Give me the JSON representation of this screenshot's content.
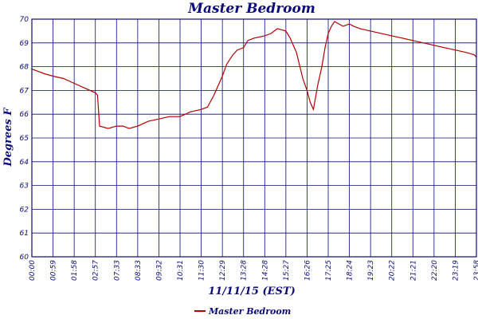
{
  "chart_data": {
    "type": "line",
    "title": "Master Bedroom",
    "xlabel": "11/11/15 (EST)",
    "ylabel": "Degrees F",
    "ylim": [
      60,
      70
    ],
    "y_ticks": [
      "60",
      "61",
      "62",
      "63",
      "64",
      "65",
      "66",
      "67",
      "68",
      "69",
      "70"
    ],
    "x_ticks": [
      "00:00",
      "00:59",
      "01:58",
      "02:57",
      "07:33",
      "08:33",
      "09:32",
      "10:31",
      "11:30",
      "12:29",
      "13:28",
      "14:28",
      "15:27",
      "16:26",
      "17:25",
      "18:24",
      "19:23",
      "20:22",
      "21:21",
      "22:20",
      "23:19",
      "23:58"
    ],
    "grid": true,
    "legend_position": "bottom-center",
    "colors": {
      "series": "#b00000",
      "grid": "#0b0b7a",
      "text": "#0b0b7a"
    },
    "series": [
      {
        "name": "Master Bedroom",
        "x_index": [
          0,
          0.3,
          0.6,
          1,
          1.5,
          2,
          2.5,
          3,
          3.1,
          3.2,
          3.6,
          4,
          4.3,
          4.6,
          5,
          5.5,
          6,
          6.5,
          7,
          7.5,
          8,
          8.3,
          8.6,
          9,
          9.2,
          9.5,
          9.7,
          10,
          10.2,
          10.5,
          11,
          11.3,
          11.6,
          12,
          12.2,
          12.5,
          12.8,
          13,
          13.15,
          13.3,
          13.5,
          13.7,
          13.85,
          14,
          14.15,
          14.3,
          14.5,
          14.7,
          15,
          15.2,
          15.5,
          16,
          16.5,
          17,
          17.5,
          18,
          18.5,
          19,
          19.5,
          20,
          20.5,
          20.9,
          21
        ],
        "values": [
          67.9,
          67.8,
          67.7,
          67.6,
          67.5,
          67.3,
          67.1,
          66.9,
          66.8,
          65.5,
          65.4,
          65.5,
          65.5,
          65.4,
          65.5,
          65.7,
          65.8,
          65.9,
          65.9,
          66.1,
          66.2,
          66.3,
          66.8,
          67.6,
          68.1,
          68.5,
          68.7,
          68.8,
          69.1,
          69.2,
          69.3,
          69.4,
          69.6,
          69.5,
          69.2,
          68.6,
          67.5,
          67.0,
          66.5,
          66.2,
          67.2,
          68.0,
          68.8,
          69.4,
          69.7,
          69.9,
          69.8,
          69.7,
          69.8,
          69.7,
          69.6,
          69.5,
          69.4,
          69.3,
          69.2,
          69.1,
          69.0,
          68.9,
          68.8,
          68.7,
          68.6,
          68.5,
          68.4
        ]
      }
    ]
  }
}
